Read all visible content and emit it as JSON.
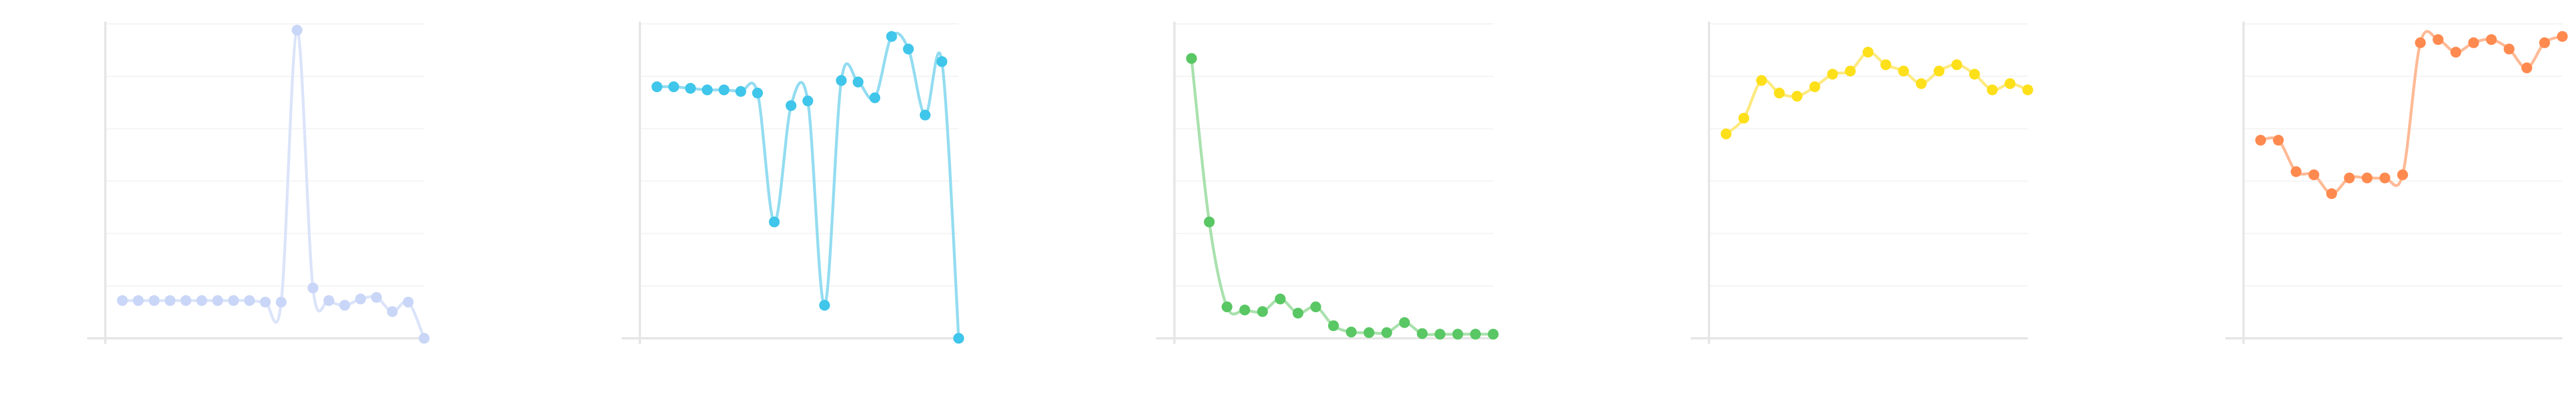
{
  "chart_data": [
    {
      "type": "line",
      "color": "#c9d6f7",
      "line_color": "#dbe4fa",
      "ylim": [
        0,
        100
      ],
      "grid": true,
      "values": [
        12,
        12,
        12,
        12,
        12,
        12,
        12,
        12,
        12,
        11.5,
        11.5,
        98,
        16,
        12,
        10.5,
        12.5,
        13,
        8.5,
        11.5,
        0
      ]
    },
    {
      "type": "line",
      "color": "#3fc6ea",
      "line_color": "#93dcf1",
      "ylim": [
        0,
        100
      ],
      "grid": true,
      "values": [
        80,
        80,
        79.5,
        79,
        79,
        78.5,
        78,
        37,
        74,
        75.5,
        10.5,
        82,
        81.5,
        76.5,
        96,
        92,
        71,
        88,
        0
      ]
    },
    {
      "type": "line",
      "color": "#59c764",
      "line_color": "#a9e1ad",
      "ylim": [
        0,
        100
      ],
      "grid": true,
      "values": [
        89,
        37,
        10,
        9,
        8.5,
        12.5,
        8,
        10,
        4,
        2,
        1.8,
        1.8,
        5,
        1.5,
        1.3,
        1.3,
        1.3,
        1.3
      ]
    },
    {
      "type": "line",
      "color": "#fde01a",
      "line_color": "#feea80",
      "ylim": [
        0,
        100
      ],
      "grid": true,
      "values": [
        65,
        70,
        82,
        78,
        77,
        80,
        84,
        85,
        91,
        87,
        85,
        81,
        85,
        87,
        84,
        79,
        81,
        79
      ]
    },
    {
      "type": "line",
      "color": "#ff8a50",
      "line_color": "#ffba96",
      "ylim": [
        0,
        100
      ],
      "grid": true,
      "values": [
        63,
        63,
        53,
        52,
        46,
        51,
        51,
        51,
        52,
        94,
        95,
        91,
        94,
        95,
        92,
        86,
        94,
        96
      ]
    }
  ]
}
